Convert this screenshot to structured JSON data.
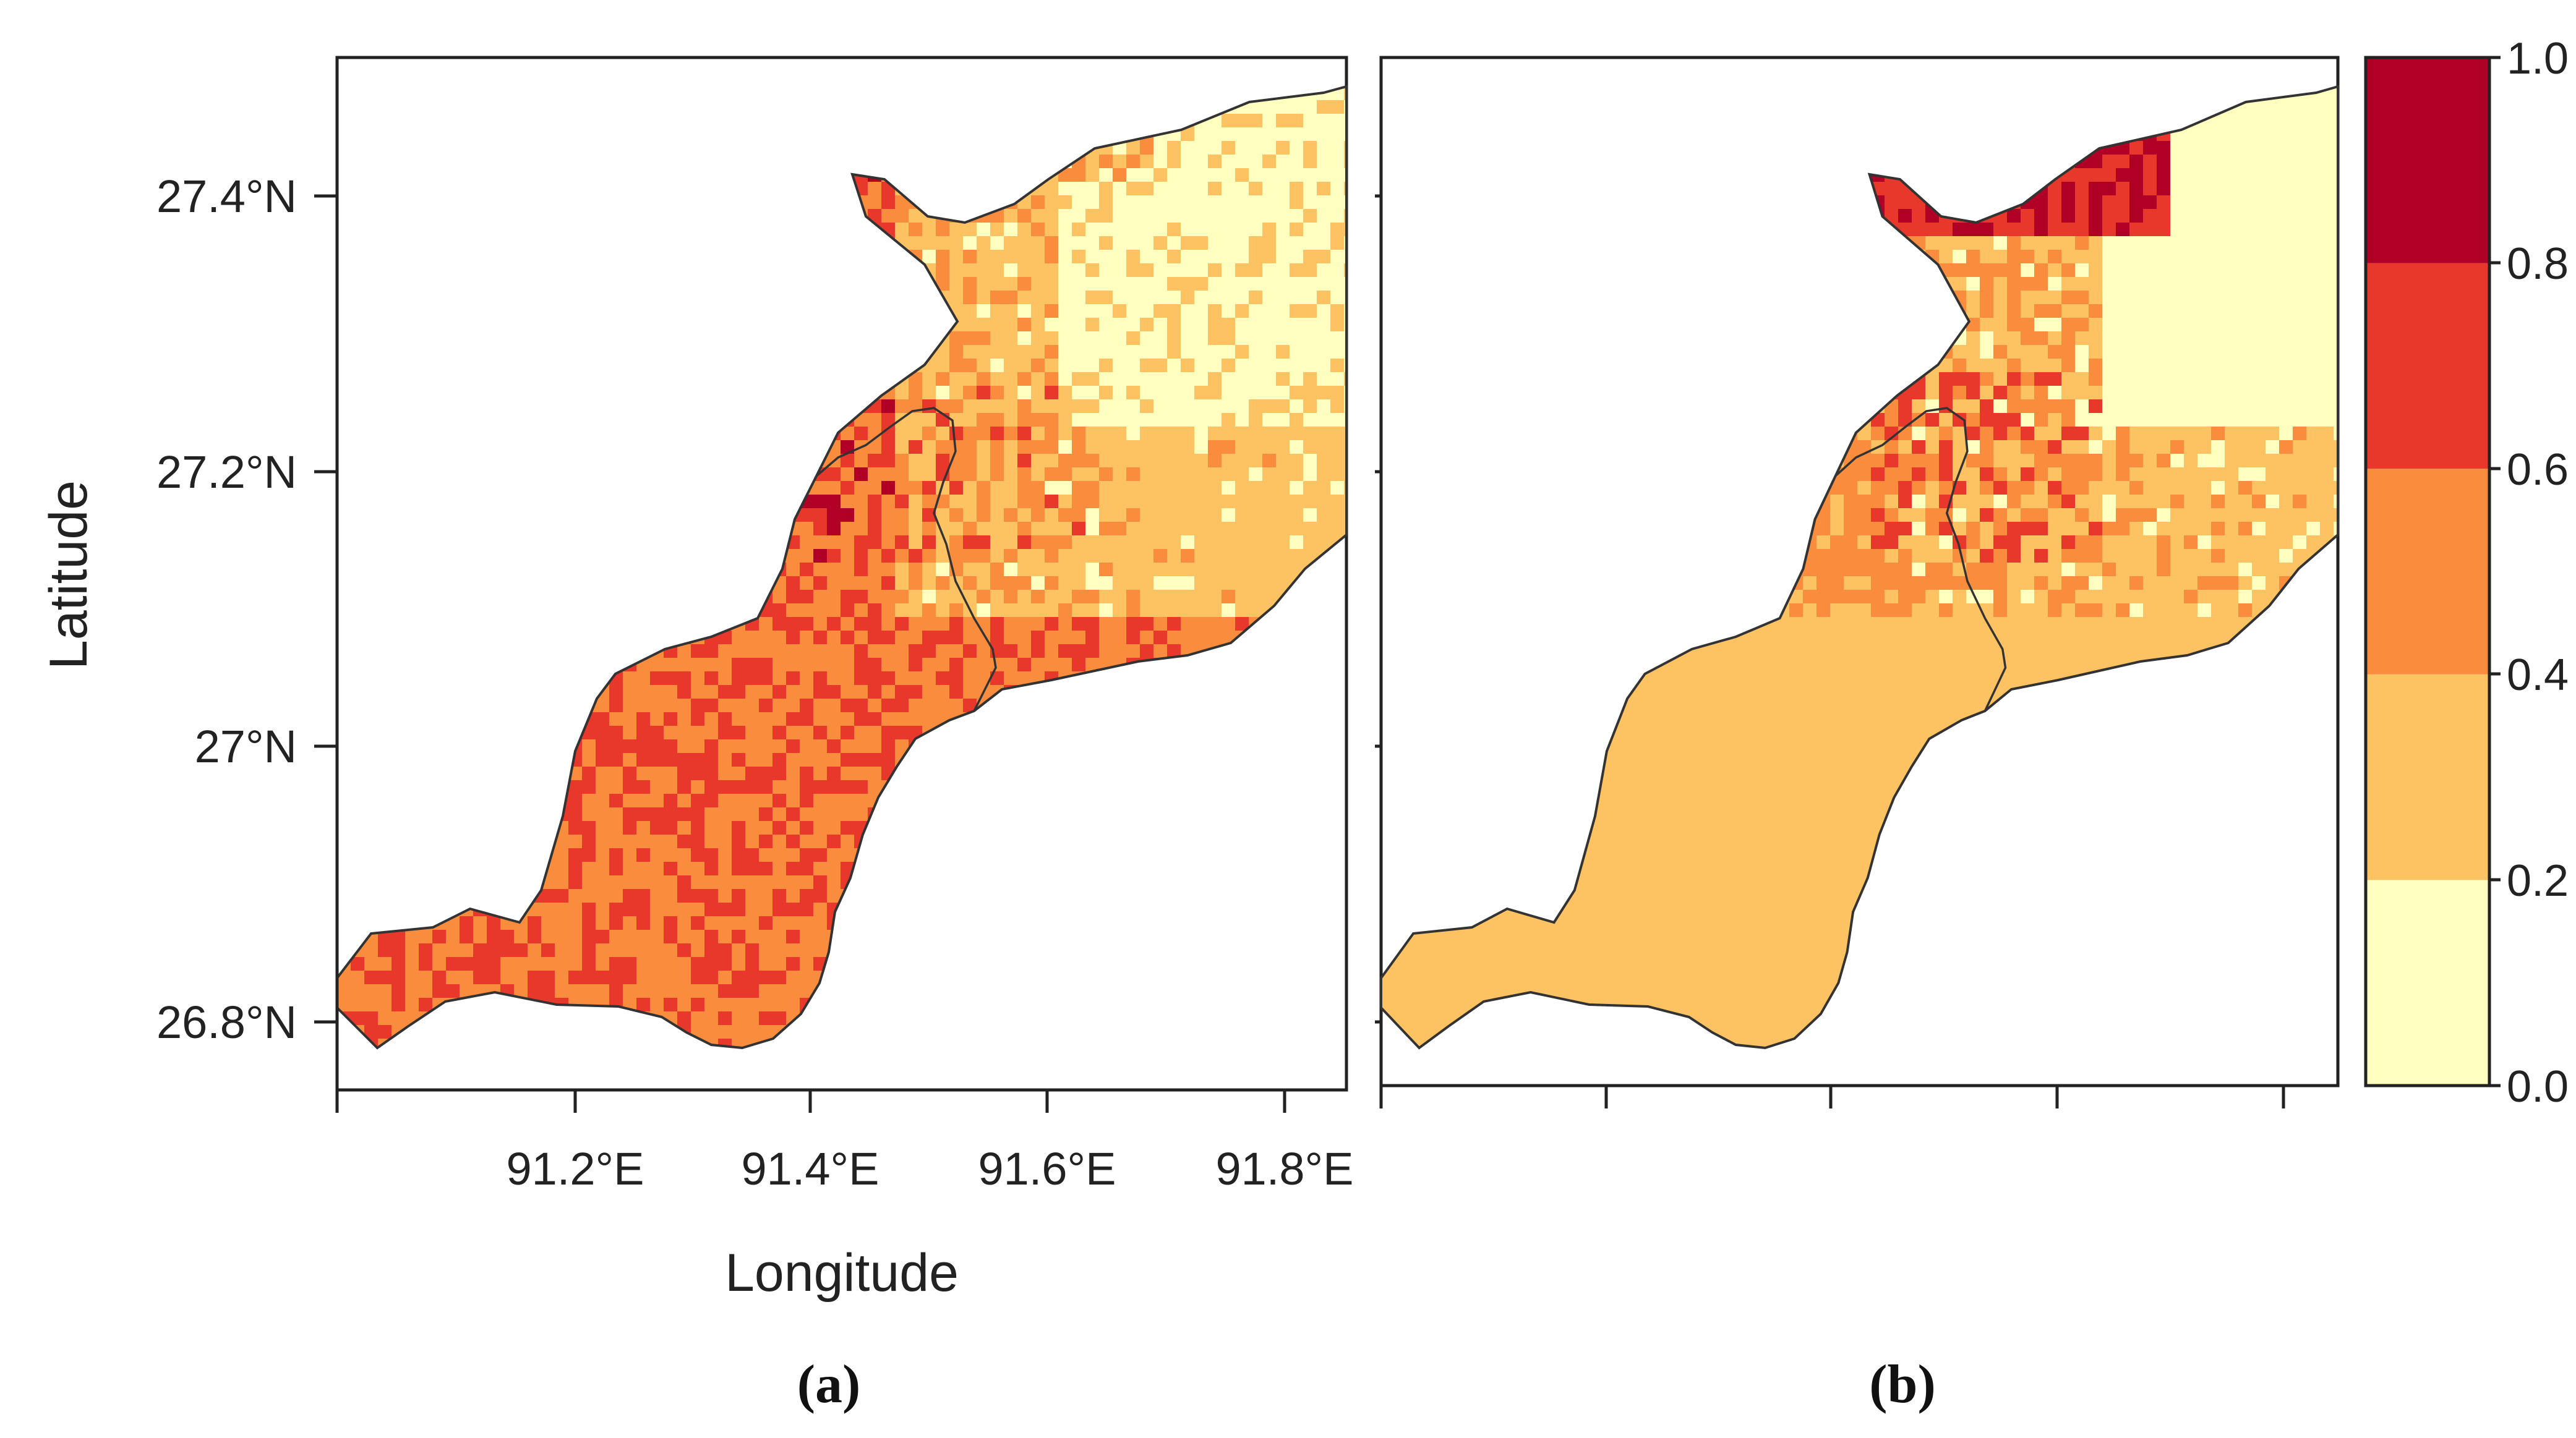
{
  "figure": {
    "axis_labels": {
      "x": "Longitude",
      "y": "Latitude"
    },
    "x_ticks": [
      "91.2°E",
      "91.4°E",
      "91.6°E",
      "91.8°E"
    ],
    "y_ticks": [
      "27.4°N",
      "27.2°N",
      "27°N",
      "26.8°N"
    ],
    "panels": [
      {
        "label": "(a)"
      },
      {
        "label": "(b)"
      }
    ],
    "legend": {
      "ticks": [
        "0.0",
        "0.2",
        "0.4",
        "0.6",
        "0.8",
        "1.0"
      ],
      "bins": [
        {
          "from": 0.0,
          "to": 0.2,
          "color": "#FFFFBF"
        },
        {
          "from": 0.2,
          "to": 0.4,
          "color": "#FDC262"
        },
        {
          "from": 0.4,
          "to": 0.6,
          "color": "#F98D3D"
        },
        {
          "from": 0.6,
          "to": 0.8,
          "color": "#E8382B"
        },
        {
          "from": 0.8,
          "to": 1.0,
          "color": "#B00026"
        }
      ]
    },
    "colors": {
      "outline": "#333333",
      "frame": "#222222",
      "background": "#ffffff"
    }
  },
  "chart_data": {
    "type": "heatmap",
    "x_range": [
      91.0,
      91.85
    ],
    "y_range": [
      26.75,
      27.5
    ],
    "value_range": [
      0.0,
      1.0
    ]
  }
}
